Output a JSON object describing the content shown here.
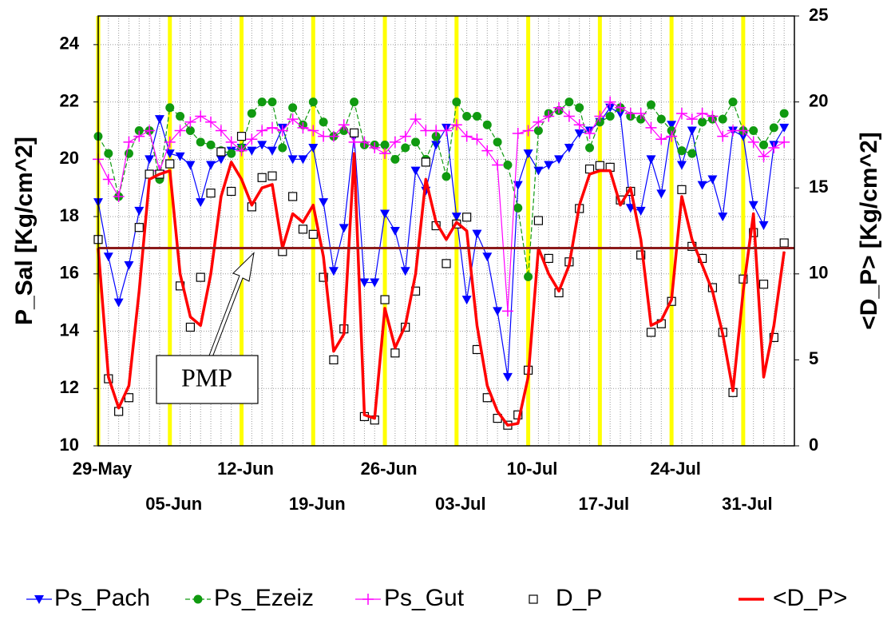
{
  "chart_data": {
    "type": "line",
    "ylabel": "P_Sal [Kg/cm^2]",
    "y2label": "<D_P> [Kg/cm^2]",
    "x": [
      0,
      1,
      2,
      3,
      4,
      5,
      6,
      7,
      8,
      9,
      10,
      11,
      12,
      13,
      14,
      15,
      16,
      17,
      18,
      19,
      20,
      21,
      22,
      23,
      24,
      25,
      26,
      27,
      28,
      29,
      30,
      31,
      32,
      33,
      34,
      35,
      36,
      37,
      38,
      39,
      40,
      41,
      42,
      43,
      44,
      45,
      46,
      47,
      48,
      49,
      50,
      51,
      52,
      53,
      54,
      55,
      56,
      57,
      58,
      59,
      60,
      61,
      62,
      63,
      64,
      65,
      66,
      67
    ],
    "xlim": [
      0,
      68
    ],
    "xticks": [
      {
        "value": 0,
        "label": "29-May"
      },
      {
        "value": 7,
        "label": "05-Jun"
      },
      {
        "value": 14,
        "label": "12-Jun"
      },
      {
        "value": 21,
        "label": "19-Jun"
      },
      {
        "value": 28,
        "label": "26-Jun"
      },
      {
        "value": 35,
        "label": "03-Jul"
      },
      {
        "value": 42,
        "label": "10-Jul"
      },
      {
        "value": 49,
        "label": "17-Jul"
      },
      {
        "value": 56,
        "label": "24-Jul"
      },
      {
        "value": 63,
        "label": "31-Jul"
      }
    ],
    "ylim": [
      10,
      25
    ],
    "yticks": [
      10,
      12,
      14,
      16,
      18,
      20,
      22,
      24
    ],
    "y2lim": [
      0,
      25
    ],
    "y2ticks": [
      0,
      5,
      10,
      15,
      20,
      25
    ],
    "grid": true,
    "week_line_color": "#ffff00",
    "legend": "bottom",
    "hlines": [
      {
        "value": 16.9,
        "color": "#8b1a1a",
        "label": "PMP"
      }
    ],
    "series": [
      {
        "name": "Ps_Pach",
        "color": "#0000ff",
        "marker": "triangle",
        "line": "solid",
        "values": [
          18.5,
          16.6,
          15.0,
          16.3,
          18.2,
          20.0,
          21.4,
          20.2,
          20.1,
          19.8,
          18.5,
          19.8,
          20.0,
          20.3,
          20.4,
          20.3,
          20.5,
          20.3,
          21.1,
          20.0,
          20.0,
          20.4,
          18.5,
          16.1,
          17.6,
          20.8,
          15.7,
          15.7,
          18.1,
          17.5,
          16.1,
          19.6,
          18.9,
          20.5,
          21.1,
          18.0,
          15.1,
          17.4,
          16.6,
          14.7,
          12.4,
          19.1,
          20.2,
          19.6,
          19.8,
          20.0,
          20.4,
          20.9,
          21.0,
          21.3,
          21.8,
          21.6,
          18.3,
          18.2,
          20.0,
          18.8,
          21.2,
          19.8,
          21.0,
          19.1,
          19.3,
          18.0,
          21.0,
          20.8,
          18.4,
          17.7,
          20.5,
          21.1
        ]
      },
      {
        "name": "Ps_Ezeiz",
        "color": "#109a10",
        "marker": "circle",
        "line": "dashed",
        "values": [
          20.8,
          20.2,
          18.7,
          20.2,
          21.0,
          21.0,
          19.3,
          21.8,
          21.5,
          21.0,
          20.6,
          20.5,
          20.3,
          20.2,
          20.4,
          21.6,
          22.0,
          22.0,
          20.4,
          21.8,
          21.2,
          22.0,
          21.3,
          20.8,
          21.0,
          22.0,
          20.5,
          20.5,
          20.5,
          20.0,
          20.4,
          20.6,
          20.0,
          20.8,
          19.4,
          22.0,
          21.5,
          21.5,
          21.2,
          20.6,
          19.8,
          18.3,
          15.9,
          21.0,
          21.6,
          21.7,
          22.0,
          21.8,
          20.4,
          21.3,
          21.5,
          21.8,
          21.5,
          21.4,
          21.9,
          21.4,
          21.0,
          20.3,
          20.2,
          21.3,
          21.4,
          21.4,
          22.0,
          21.0,
          21.0,
          20.5,
          21.1,
          21.6
        ]
      },
      {
        "name": "Ps_Gut",
        "color": "#ff00ff",
        "marker": "plus",
        "line": "solid",
        "values": [
          20.0,
          19.3,
          18.7,
          20.6,
          20.8,
          21.0,
          19.6,
          20.6,
          21.0,
          21.3,
          21.5,
          21.3,
          21.0,
          20.6,
          20.3,
          20.7,
          21.0,
          21.1,
          21.0,
          21.4,
          21.1,
          21.0,
          20.8,
          20.8,
          21.2,
          20.6,
          20.6,
          20.4,
          20.2,
          20.6,
          20.8,
          21.4,
          21.0,
          21.0,
          21.0,
          21.2,
          20.8,
          20.7,
          20.3,
          19.8,
          14.7,
          20.9,
          21.0,
          21.3,
          21.5,
          21.8,
          21.5,
          21.2,
          20.9,
          21.5,
          22.0,
          21.8,
          21.6,
          21.6,
          21.1,
          20.7,
          20.8,
          21.6,
          21.4,
          21.6,
          21.5,
          20.8,
          21.0,
          21.0,
          20.6,
          20.1,
          20.4,
          20.6
        ]
      },
      {
        "name": "D_P",
        "color": "#000000",
        "marker": "square",
        "line": "none",
        "axis": "y2",
        "values": [
          12.0,
          3.9,
          2.0,
          2.8,
          12.7,
          15.8,
          15.8,
          16.4,
          9.3,
          6.9,
          9.8,
          14.7,
          17.1,
          14.8,
          18.0,
          13.9,
          15.6,
          15.7,
          11.3,
          14.5,
          12.6,
          12.3,
          9.8,
          5.0,
          6.8,
          18.2,
          1.7,
          1.5,
          8.5,
          5.4,
          6.9,
          9.0,
          16.5,
          12.8,
          10.6,
          12.9,
          13.3,
          5.6,
          2.8,
          1.6,
          1.2,
          1.8,
          4.4,
          13.1,
          10.9,
          8.9,
          10.7,
          13.8,
          16.1,
          16.3,
          16.2,
          14.3,
          14.8,
          11.1,
          6.6,
          7.1,
          8.4,
          14.9,
          11.6,
          10.9,
          9.2,
          6.6,
          3.1,
          9.7,
          12.4,
          9.4,
          6.3,
          11.8
        ]
      },
      {
        "name": "<D_P>",
        "color": "#ff0000",
        "marker": "none",
        "line": "thick",
        "axis": "y2",
        "values": [
          11.5,
          4.0,
          2.2,
          3.5,
          9.0,
          15.5,
          15.8,
          16.0,
          10.0,
          7.5,
          7.0,
          10.0,
          14.5,
          16.5,
          15.5,
          14.0,
          15.0,
          15.2,
          11.5,
          13.5,
          13.0,
          14.0,
          11.0,
          5.5,
          6.5,
          17.0,
          1.8,
          1.6,
          8.0,
          5.7,
          7.0,
          10.0,
          15.5,
          13.0,
          12.0,
          13.0,
          12.5,
          7.0,
          3.5,
          2.0,
          1.2,
          1.3,
          4.0,
          11.5,
          10.0,
          9.0,
          10.5,
          14.0,
          15.8,
          16.0,
          16.0,
          14.0,
          15.0,
          12.0,
          7.0,
          7.3,
          8.5,
          14.5,
          12.0,
          10.5,
          9.0,
          6.5,
          3.2,
          9.0,
          13.5,
          4.0,
          7.0,
          11.3
        ]
      }
    ]
  }
}
